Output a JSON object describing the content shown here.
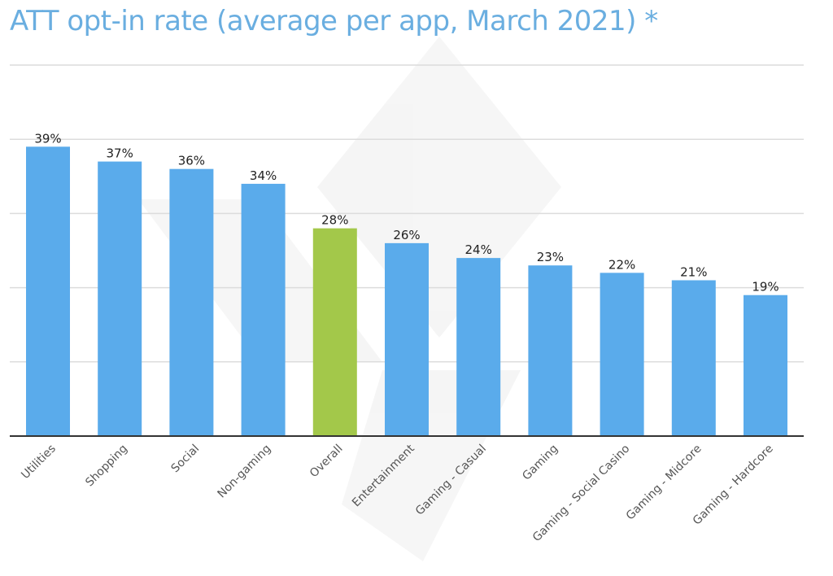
{
  "chart_data": {
    "type": "bar",
    "title": "ATT opt-in rate (average per app, March 2021) *",
    "xlabel": "",
    "ylabel": "",
    "ylim": [
      0,
      50
    ],
    "grid": true,
    "categories": [
      "Utilities",
      "Shopping",
      "Social",
      "Non-gaming",
      "Overall",
      "Entertainment",
      "Gaming - Casual",
      "Gaming",
      "Gaming - Social Casino",
      "Gaming - Midcore",
      "Gaming - Hardcore"
    ],
    "values": [
      39,
      37,
      36,
      34,
      28,
      26,
      24,
      23,
      22,
      21,
      19
    ],
    "data_labels": [
      "39%",
      "37%",
      "36%",
      "34%",
      "28%",
      "26%",
      "24%",
      "23%",
      "22%",
      "21%",
      "19%"
    ],
    "highlight_category": "Overall",
    "colors": {
      "default_bar": "#5aabeb",
      "highlight_bar": "#a3c84a",
      "gridline": "#dcdcdc",
      "axis": "#333333",
      "title": "#6aaee0"
    }
  }
}
